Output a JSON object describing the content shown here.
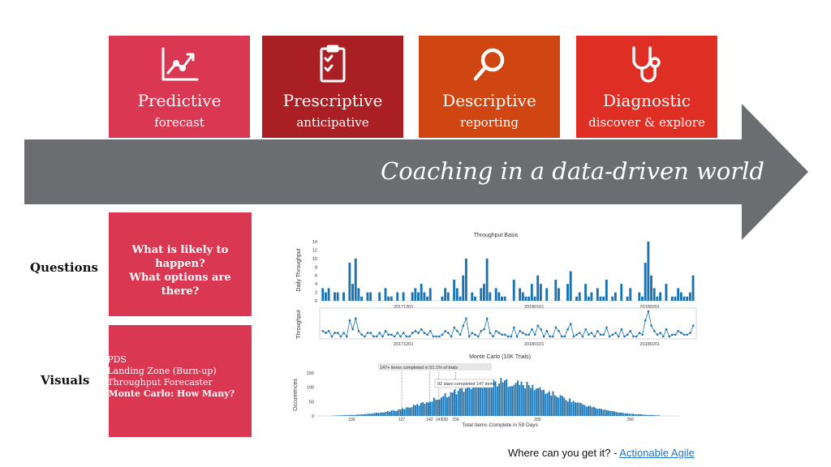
{
  "colors": {
    "predictive": "#d93752",
    "prescriptive": "#a91f23",
    "descriptive": "#d04612",
    "diagnostic": "#df2e24",
    "arrow": "#6b6d71",
    "bar": "#1a73b0"
  },
  "cards": [
    {
      "title": "Predictive",
      "subtitle": "forecast",
      "icon": "trend-line-icon"
    },
    {
      "title": "Prescriptive",
      "subtitle": "anticipative",
      "icon": "clipboard-check-icon"
    },
    {
      "title": "Descriptive",
      "subtitle": "reporting",
      "icon": "magnifier-icon"
    },
    {
      "title": "Diagnostic",
      "subtitle": "discover & explore",
      "icon": "stethoscope-icon"
    }
  ],
  "arrow_label": "Coaching in a data-driven world",
  "questions": {
    "label": "Questions",
    "lines": [
      "What is likely to",
      "happen?",
      "What options are",
      "there?"
    ]
  },
  "visuals": {
    "label": "Visuals",
    "items": [
      "- PDS",
      "- Landing Zone (Burn-up)",
      "- Throughput Forecaster",
      "- Monte Carlo: How Many?"
    ]
  },
  "chart_data": [
    {
      "type": "bar",
      "title": "Throughput Basis",
      "ylabel": "Daily Throughput",
      "ylim": [
        0,
        14
      ],
      "yticks": [
        "0",
        "2",
        "4",
        "6",
        "8",
        "10",
        "12",
        "14"
      ],
      "xticks": [
        "20171201",
        "20180101",
        "20180201"
      ],
      "values": [
        3,
        2,
        3,
        0,
        2,
        2,
        0,
        2,
        0,
        9,
        4,
        10,
        3,
        1,
        0,
        2,
        2,
        0,
        0,
        2,
        0,
        3,
        1,
        1,
        0,
        2,
        0,
        2,
        0,
        0,
        2,
        3,
        2,
        4,
        2,
        1,
        3,
        0,
        0,
        0,
        1,
        3,
        2,
        0,
        5,
        3,
        1,
        6,
        10,
        0,
        2,
        1,
        0,
        3,
        4,
        10,
        2,
        0,
        3,
        2,
        1,
        1,
        0,
        0,
        5,
        0,
        3,
        2,
        1,
        1,
        4,
        1,
        6,
        4,
        0,
        3,
        0,
        0,
        5,
        3,
        0,
        0,
        4,
        7,
        0,
        1,
        2,
        0,
        4,
        1,
        2,
        0,
        3,
        1,
        1,
        5,
        0,
        1,
        2,
        0,
        4,
        0,
        1,
        3,
        0,
        0,
        2,
        1,
        9,
        14,
        6,
        3,
        1,
        2,
        0,
        4,
        0,
        1,
        1,
        3,
        2,
        1,
        1,
        2,
        6
      ]
    },
    {
      "type": "line",
      "ylabel": "Throughput",
      "xticks": [
        "20171201",
        "20180101",
        "20180201"
      ],
      "values": [
        3,
        2,
        3,
        0,
        2,
        2,
        0,
        2,
        0,
        9,
        4,
        10,
        3,
        1,
        0,
        2,
        2,
        0,
        0,
        2,
        0,
        3,
        1,
        1,
        0,
        2,
        0,
        2,
        0,
        0,
        2,
        3,
        2,
        4,
        2,
        1,
        3,
        0,
        0,
        0,
        1,
        3,
        2,
        0,
        5,
        3,
        1,
        6,
        10,
        0,
        2,
        1,
        0,
        3,
        4,
        10,
        2,
        0,
        3,
        2,
        1,
        1,
        0,
        0,
        5,
        0,
        3,
        2,
        1,
        1,
        4,
        1,
        6,
        4,
        0,
        3,
        0,
        0,
        5,
        3,
        0,
        0,
        4,
        7,
        0,
        1,
        2,
        0,
        4,
        1,
        2,
        0,
        3,
        1,
        1,
        5,
        0,
        1,
        2,
        0,
        4,
        0,
        1,
        3,
        0,
        0,
        2,
        1,
        9,
        14,
        6,
        3,
        1,
        2,
        0,
        4,
        0,
        1,
        1,
        3,
        2,
        1,
        1,
        2,
        6
      ]
    },
    {
      "type": "bar",
      "title": "Monte Carlo (10K Trials)",
      "xlabel": "Total Items Complete in 59 Days",
      "ylabel": "Occurrences",
      "ylim": [
        0,
        150
      ],
      "yticks": [
        "0",
        "50",
        "100",
        "150"
      ],
      "xticks": [
        "100",
        "127",
        "142",
        "147",
        "150",
        "156",
        "200",
        "250"
      ],
      "xlim": [
        82,
        275
      ],
      "annotations": [
        "147+ items completed in 51.1% of trials",
        "92 stars completed 147 items"
      ]
    }
  ],
  "footer": {
    "text": "Where can you get it? - ",
    "link": "Actionable Agile"
  }
}
